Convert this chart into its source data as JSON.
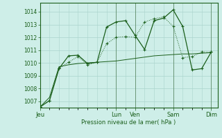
{
  "bg_color": "#ceeee8",
  "grid_color": "#aad4cc",
  "line_color": "#1a5e1a",
  "ylabel": "Pression niveau de la mer( hPa )",
  "ylim": [
    1006.5,
    1014.7
  ],
  "yticks": [
    1007,
    1008,
    1009,
    1010,
    1011,
    1012,
    1013,
    1014
  ],
  "day_labels": [
    "Jeu",
    "Lun",
    "Ven",
    "Sam",
    "Dim"
  ],
  "day_positions": [
    0,
    48,
    60,
    84,
    108
  ],
  "xlim": [
    0,
    112
  ],
  "series1_x": [
    0,
    6,
    12,
    18,
    24,
    30,
    36,
    42,
    48,
    54,
    60,
    66,
    72,
    78,
    84,
    90,
    96,
    102,
    108
  ],
  "series1_y": [
    1006.55,
    1007.05,
    1009.55,
    1010.05,
    1010.5,
    1009.85,
    1010.05,
    1011.5,
    1012.0,
    1012.05,
    1012.0,
    1013.2,
    1013.45,
    1013.6,
    1012.85,
    1010.4,
    1010.5,
    1010.85,
    1010.85
  ],
  "series2_x": [
    0,
    6,
    12,
    18,
    24,
    30,
    36,
    42,
    48,
    54,
    60,
    66,
    72,
    78,
    84,
    90,
    96,
    102,
    108
  ],
  "series2_y": [
    1006.55,
    1007.05,
    1009.55,
    1010.55,
    1010.6,
    1009.95,
    1010.05,
    1012.8,
    1013.2,
    1013.3,
    1012.15,
    1011.05,
    1013.3,
    1013.5,
    1014.15,
    1012.85,
    1009.45,
    1009.55,
    1010.85
  ],
  "series3_x": [
    0,
    6,
    12,
    18,
    24,
    30,
    36,
    42,
    48,
    54,
    60,
    66,
    72,
    78,
    84,
    90,
    96,
    102,
    108
  ],
  "series3_y": [
    1006.55,
    1007.3,
    1009.7,
    1009.85,
    1009.95,
    1010.0,
    1010.05,
    1010.1,
    1010.15,
    1010.25,
    1010.35,
    1010.45,
    1010.55,
    1010.6,
    1010.65,
    1010.7,
    1010.7,
    1010.75,
    1010.8
  ]
}
